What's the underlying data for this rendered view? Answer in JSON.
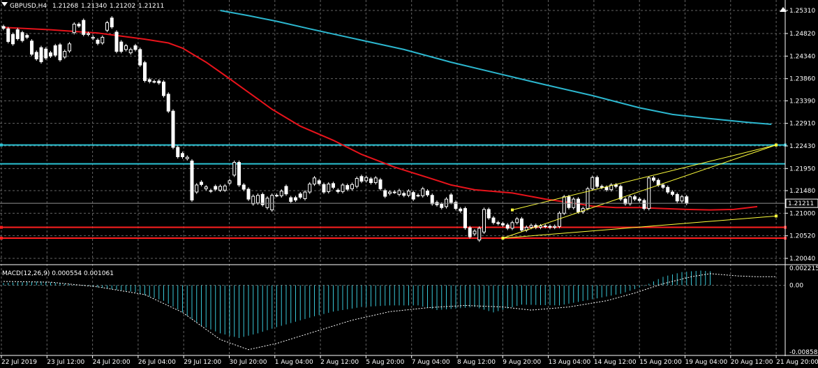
{
  "header": {
    "symbol": "GBPUSD,H4",
    "open": "1.21268",
    "high": "1.21340",
    "low": "1.21202",
    "close": "1.21211"
  },
  "colors": {
    "background": "#000000",
    "grid": "#646464",
    "candle": "#ffffff",
    "ma_fast": "#e8131b",
    "ma_slow": "#2cb7cf",
    "hline_cyan": "#2cc3d4",
    "hline_red": "#ff2020",
    "trendline": "#ffff3c",
    "macd_hist": "#39c6d6",
    "macd_signal": "#ffffff"
  },
  "chart_data": [
    {
      "type": "candlestick",
      "title": "GBPUSD,H4",
      "price_ticks": [
        "1.25310",
        "1.24820",
        "1.24340",
        "1.23860",
        "1.23390",
        "1.22910",
        "1.22430",
        "1.21950",
        "1.21480",
        "1.21000",
        "1.20520",
        "1.20040"
      ],
      "current_price_label": "1.21211",
      "ylim": [
        1.2004,
        1.2531
      ],
      "x_labels": [
        "22 Jul 2019",
        "23 Jul 12:00",
        "24 Jul 20:00",
        "26 Jul 04:00",
        "29 Jul 12:00",
        "30 Jul 20:00",
        "1 Aug 04:00",
        "2 Aug 12:00",
        "5 Aug 20:00",
        "7 Aug 04:00",
        "8 Aug 12:00",
        "9 Aug 20:00",
        "13 Aug 04:00",
        "14 Aug 12:00",
        "15 Aug 20:00",
        "19 Aug 04:00",
        "20 Aug 12:00",
        "21 Aug 20:00"
      ],
      "closes": [
        1.2496,
        1.2466,
        1.2477,
        1.2489,
        1.2472,
        1.2478,
        1.2442,
        1.2425,
        1.2447,
        1.2438,
        1.245,
        1.246,
        1.2428,
        1.2435,
        1.247,
        1.251,
        1.2498,
        1.2488,
        1.2482,
        1.247,
        1.2468,
        1.2474,
        1.2488,
        1.2512,
        1.2482,
        1.2445,
        1.245,
        1.2445,
        1.2448,
        1.2442,
        1.2418,
        1.2384,
        1.2378,
        1.2372,
        1.2358,
        1.2337,
        1.229,
        1.2226,
        1.2208,
        1.2216,
        1.219,
        1.2127,
        1.2148,
        1.2172,
        1.2155,
        1.216,
        1.215,
        1.2166,
        1.2168,
        1.2165,
        1.2182,
        1.2207,
        1.216,
        1.212,
        1.2136,
        1.2125,
        1.214,
        1.2118,
        1.2112,
        1.2132,
        1.216,
        1.2145,
        1.213,
        1.2128,
        1.2145,
        1.2135,
        1.2145,
        1.2162,
        1.2175,
        1.2162,
        1.215,
        1.2162,
        1.2155,
        1.214,
        1.2158,
        1.215,
        1.2164,
        1.2174,
        1.2168,
        1.2175,
        1.2165,
        1.2165,
        1.2172,
        1.2152,
        1.2145,
        1.2135,
        1.2145,
        1.2142,
        1.2152,
        1.2138,
        1.2145,
        1.213,
        1.2147,
        1.2152,
        1.2138,
        1.212,
        1.2118,
        1.2112,
        1.213,
        1.2123,
        1.2118,
        1.213,
        1.2069,
        1.205,
        1.2048,
        1.2043,
        1.2068,
        1.2108,
        1.209,
        1.208,
        1.2078,
        1.2075,
        1.2068,
        1.208,
        1.2088,
        1.2064,
        1.207,
        1.2074,
        1.207,
        1.2073,
        1.2072,
        1.207,
        1.2072,
        1.21,
        1.2135,
        1.2112,
        1.213,
        1.2103,
        1.211,
        1.2152,
        1.2176,
        1.2157,
        1.2155,
        1.215,
        1.216,
        1.2157,
        1.213,
        1.212,
        1.2135,
        1.213,
        1.2127,
        1.211,
        1.2175,
        1.217,
        1.216,
        1.2155,
        1.2145,
        1.214,
        1.2126,
        1.2135,
        1.2121
      ],
      "bodies": [
        [
          1.2497,
          1.2493
        ],
        [
          1.2492,
          1.2465
        ],
        [
          1.248,
          1.246
        ],
        [
          1.249,
          1.2471
        ],
        [
          1.2484,
          1.2467
        ],
        [
          1.2478,
          1.2474
        ],
        [
          1.2466,
          1.2438
        ],
        [
          1.2442,
          1.2428
        ],
        [
          1.2452,
          1.2422
        ],
        [
          1.2449,
          1.243
        ],
        [
          1.2441,
          1.2434
        ],
        [
          1.2456,
          1.2436
        ],
        [
          1.2458,
          1.2426
        ],
        [
          1.2432,
          1.2444
        ],
        [
          1.2445,
          1.246
        ],
        [
          1.2484,
          1.2502
        ],
        [
          1.2502,
          1.2498
        ],
        [
          1.251,
          1.248
        ],
        [
          1.248,
          1.2482
        ],
        [
          1.2472,
          1.2474
        ],
        [
          1.2468,
          1.2461
        ],
        [
          1.2462,
          1.2474
        ],
        [
          1.2489,
          1.2505
        ],
        [
          1.2515,
          1.2496
        ],
        [
          1.2485,
          1.2444
        ],
        [
          1.2464,
          1.2444
        ],
        [
          1.2448,
          1.2456
        ],
        [
          1.2441,
          1.2448
        ],
        [
          1.2456,
          1.2448
        ],
        [
          1.2448,
          1.2415
        ],
        [
          1.242,
          1.2382
        ],
        [
          1.2384,
          1.238
        ],
        [
          1.238,
          1.238
        ],
        [
          1.2381,
          1.2377
        ],
        [
          1.2379,
          1.235
        ],
        [
          1.2353,
          1.2317
        ],
        [
          1.2317,
          1.224
        ],
        [
          1.224,
          1.222
        ],
        [
          1.2227,
          1.222
        ],
        [
          1.2216,
          1.2219
        ],
        [
          1.2211,
          1.2128
        ],
        [
          1.2145,
          1.216
        ],
        [
          1.2166,
          1.2161
        ],
        [
          1.2152,
          1.2156
        ],
        [
          1.2148,
          1.2147
        ],
        [
          1.2157,
          1.2151
        ],
        [
          1.2149,
          1.2157
        ],
        [
          1.2149,
          1.2158
        ],
        [
          1.2164,
          1.2169
        ],
        [
          1.2181,
          1.2208
        ],
        [
          1.2208,
          1.216
        ],
        [
          1.216,
          1.2151
        ],
        [
          1.2151,
          1.213
        ],
        [
          1.212,
          1.2136
        ],
        [
          1.2122,
          1.2138
        ],
        [
          1.214,
          1.2118
        ],
        [
          1.2112,
          1.2132
        ],
        [
          1.2107,
          1.2138
        ],
        [
          1.2138,
          1.2138
        ],
        [
          1.2137,
          1.2147
        ],
        [
          1.2157,
          1.2141
        ],
        [
          1.2133,
          1.2125
        ],
        [
          1.2133,
          1.2128
        ],
        [
          1.2141,
          1.2134
        ],
        [
          1.2131,
          1.2145
        ],
        [
          1.2145,
          1.2162
        ],
        [
          1.2162,
          1.2175
        ],
        [
          1.2169,
          1.2163
        ],
        [
          1.2161,
          1.2145
        ],
        [
          1.2146,
          1.2162
        ],
        [
          1.2163,
          1.2155
        ],
        [
          1.2149,
          1.2146
        ],
        [
          1.2146,
          1.216
        ],
        [
          1.2159,
          1.2151
        ],
        [
          1.2152,
          1.2161
        ],
        [
          1.2157,
          1.2174
        ],
        [
          1.2178,
          1.2168
        ],
        [
          1.2169,
          1.2176
        ],
        [
          1.2173,
          1.2165
        ],
        [
          1.2165,
          1.2175
        ],
        [
          1.2171,
          1.2152
        ],
        [
          1.2148,
          1.2136
        ],
        [
          1.2142,
          1.2145
        ],
        [
          1.2145,
          1.2145
        ],
        [
          1.214,
          1.2148
        ],
        [
          1.2142,
          1.2138
        ],
        [
          1.2138,
          1.2147
        ],
        [
          1.2144,
          1.213
        ],
        [
          1.2138,
          1.2138
        ],
        [
          1.2137,
          1.2152
        ],
        [
          1.2147,
          1.2139
        ],
        [
          1.2138,
          1.212
        ],
        [
          1.2123,
          1.2118
        ],
        [
          1.2119,
          1.2112
        ],
        [
          1.2114,
          1.213
        ],
        [
          1.2139,
          1.2123
        ],
        [
          1.2123,
          1.211
        ],
        [
          1.2109,
          1.2105
        ],
        [
          1.211,
          1.2069
        ],
        [
          1.2069,
          1.205
        ],
        [
          1.2056,
          1.2062
        ],
        [
          1.2043,
          1.2068
        ],
        [
          1.206,
          1.2108
        ],
        [
          1.2108,
          1.209
        ],
        [
          1.209,
          1.208
        ],
        [
          1.208,
          1.2078
        ],
        [
          1.2078,
          1.2075
        ],
        [
          1.2075,
          1.2068
        ],
        [
          1.2068,
          1.208
        ],
        [
          1.208,
          1.2088
        ],
        [
          1.2088,
          1.2064
        ],
        [
          1.2064,
          1.207
        ],
        [
          1.207,
          1.2074
        ],
        [
          1.2074,
          1.207
        ],
        [
          1.207,
          1.2073
        ],
        [
          1.2073,
          1.2072
        ],
        [
          1.2072,
          1.207
        ],
        [
          1.207,
          1.2072
        ],
        [
          1.2072,
          1.21
        ],
        [
          1.21,
          1.2135
        ],
        [
          1.2135,
          1.2112
        ],
        [
          1.2112,
          1.213
        ],
        [
          1.213,
          1.2103
        ],
        [
          1.2103,
          1.211
        ],
        [
          1.211,
          1.2152
        ],
        [
          1.2152,
          1.2176
        ],
        [
          1.2176,
          1.2157
        ],
        [
          1.2157,
          1.2155
        ],
        [
          1.2155,
          1.215
        ],
        [
          1.215,
          1.216
        ],
        [
          1.216,
          1.2157
        ],
        [
          1.2157,
          1.213
        ],
        [
          1.213,
          1.212
        ],
        [
          1.212,
          1.2135
        ],
        [
          1.2135,
          1.213
        ],
        [
          1.213,
          1.2127
        ],
        [
          1.2127,
          1.211
        ],
        [
          1.211,
          1.2175
        ],
        [
          1.2175,
          1.217
        ],
        [
          1.217,
          1.216
        ],
        [
          1.216,
          1.2155
        ],
        [
          1.2155,
          1.2145
        ],
        [
          1.2145,
          1.214
        ],
        [
          1.214,
          1.2126
        ],
        [
          1.2126,
          1.2135
        ],
        [
          1.2135,
          1.2121
        ]
      ],
      "ma_fast": [
        [
          0,
          1.2495
        ],
        [
          10,
          1.249
        ],
        [
          20,
          1.2483
        ],
        [
          30,
          1.247
        ],
        [
          35,
          1.2462
        ],
        [
          38,
          1.2451
        ],
        [
          43,
          1.2421
        ],
        [
          47,
          1.2393
        ],
        [
          52,
          1.2357
        ],
        [
          57,
          1.2321
        ],
        [
          63,
          1.2285
        ],
        [
          70,
          1.2255
        ],
        [
          76,
          1.2225
        ],
        [
          83,
          1.2198
        ],
        [
          90,
          1.2176
        ],
        [
          95,
          1.216
        ],
        [
          100,
          1.215
        ],
        [
          108,
          1.2143
        ],
        [
          115,
          1.213
        ],
        [
          122,
          1.212
        ],
        [
          125,
          1.2115
        ],
        [
          130,
          1.2112
        ],
        [
          135,
          1.2112
        ],
        [
          140,
          1.211
        ],
        [
          145,
          1.2108
        ],
        [
          150,
          1.2107
        ],
        [
          155,
          1.2108
        ],
        [
          160,
          1.2114
        ]
      ],
      "ma_slow": [
        [
          46,
          1.2531
        ],
        [
          52,
          1.252
        ],
        [
          58,
          1.2508
        ],
        [
          65,
          1.2492
        ],
        [
          75,
          1.247
        ],
        [
          85,
          1.2448
        ],
        [
          95,
          1.2421
        ],
        [
          105,
          1.2397
        ],
        [
          115,
          1.2373
        ],
        [
          125,
          1.235
        ],
        [
          135,
          1.2324
        ],
        [
          142,
          1.231
        ],
        [
          150,
          1.2301
        ],
        [
          158,
          1.2293
        ],
        [
          163,
          1.2289
        ]
      ],
      "horizontal_lines": [
        {
          "price": 1.2245,
          "color": "cyan"
        },
        {
          "price": 1.2205,
          "color": "cyan"
        },
        {
          "price": 1.207,
          "color": "red"
        },
        {
          "price": 1.2047,
          "color": "red"
        }
      ],
      "trendlines": [
        {
          "from": [
            106,
            1.2047
          ],
          "to": [
            164,
            1.2245
          ]
        },
        {
          "from": [
            106,
            1.2047
          ],
          "to": [
            164,
            1.2094
          ]
        },
        {
          "from": [
            108,
            1.2107
          ],
          "to": [
            164,
            1.2245
          ]
        }
      ]
    },
    {
      "type": "bar",
      "title": "MACD(12,26,9) 0.000554 0.001061",
      "ylim": [
        -0.0086,
        0.0023
      ],
      "y_ticks": [
        "0.002215",
        "0.00",
        "-0.008582"
      ],
      "macd_hist": [
        [
          0,
          0.0003
        ],
        [
          8,
          0.0005
        ],
        [
          15,
          0.0001
        ],
        [
          22,
          -0.0004
        ],
        [
          28,
          -0.0009
        ],
        [
          34,
          -0.002
        ],
        [
          38,
          -0.0035
        ],
        [
          42,
          -0.0052
        ],
        [
          46,
          -0.0062
        ],
        [
          50,
          -0.0068
        ],
        [
          54,
          -0.0062
        ],
        [
          58,
          -0.0054
        ],
        [
          62,
          -0.0047
        ],
        [
          66,
          -0.004
        ],
        [
          70,
          -0.0034
        ],
        [
          76,
          -0.0028
        ],
        [
          82,
          -0.0026
        ],
        [
          88,
          -0.0026
        ],
        [
          92,
          -0.0032
        ],
        [
          100,
          -0.0028
        ],
        [
          104,
          -0.0035
        ],
        [
          110,
          -0.0025
        ],
        [
          118,
          -0.0026
        ],
        [
          125,
          -0.0018
        ],
        [
          131,
          -0.0011
        ],
        [
          136,
          -0.0001
        ],
        [
          140,
          0.0011
        ],
        [
          144,
          0.0017
        ],
        [
          148,
          0.0019
        ],
        [
          152,
          0.0017
        ],
        [
          156,
          0.0015
        ],
        [
          160,
          0.0011
        ],
        [
          164,
          0.0006
        ]
      ],
      "macd_signal": [
        [
          0,
          0.0005
        ],
        [
          10,
          0.0004
        ],
        [
          20,
          -0.0002
        ],
        [
          30,
          -0.0012
        ],
        [
          38,
          -0.0035
        ],
        [
          46,
          -0.007
        ],
        [
          52,
          -0.0083
        ],
        [
          58,
          -0.0075
        ],
        [
          66,
          -0.006
        ],
        [
          74,
          -0.0045
        ],
        [
          82,
          -0.0034
        ],
        [
          90,
          -0.0029
        ],
        [
          98,
          -0.0026
        ],
        [
          106,
          -0.0028
        ],
        [
          112,
          -0.0032
        ],
        [
          120,
          -0.0028
        ],
        [
          128,
          -0.002
        ],
        [
          134,
          -0.001
        ],
        [
          140,
          0.0002
        ],
        [
          146,
          0.0011
        ],
        [
          150,
          0.0015
        ],
        [
          156,
          0.0012
        ],
        [
          160,
          0.0011
        ],
        [
          164,
          0.0011
        ]
      ]
    }
  ]
}
